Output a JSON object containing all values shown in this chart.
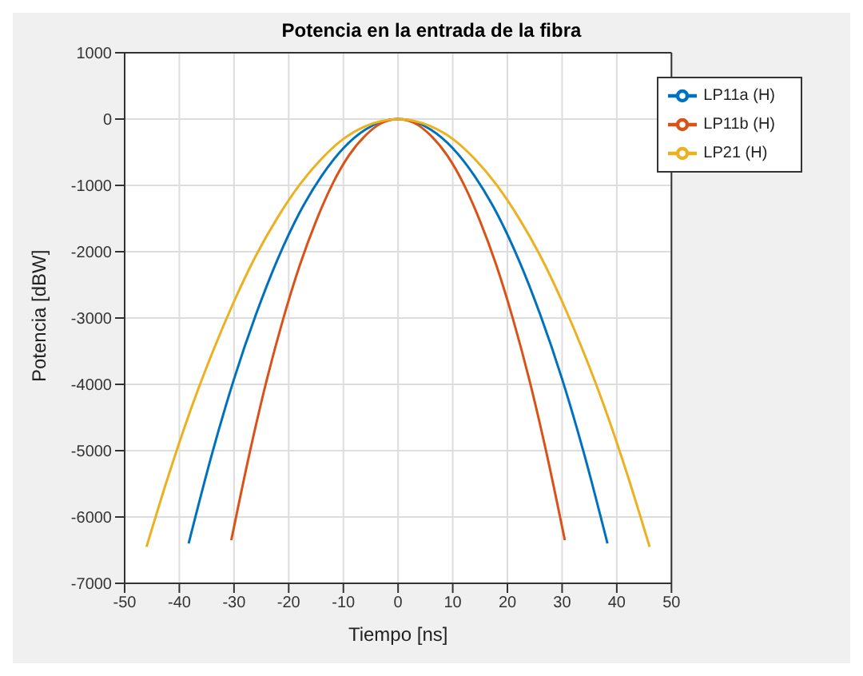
{
  "chart_data": {
    "type": "line",
    "title": "Potencia en la entrada de la fibra",
    "xlabel": "Tiempo [ns]",
    "ylabel": "Potencia [dBW]",
    "xlim": [
      -50,
      50
    ],
    "xticks": [
      -50,
      -40,
      -30,
      -20,
      -10,
      0,
      10,
      20,
      30,
      40,
      50
    ],
    "ylim": [
      -7000,
      1000
    ],
    "yticks": [
      -7000,
      -6000,
      -5000,
      -4000,
      -3000,
      -2000,
      -1000,
      0,
      1000
    ],
    "grid": true,
    "legend": "top right",
    "marker": "none",
    "line_style": "solid",
    "series": [
      {
        "name": "LP11a (H)",
        "color": "#0072bd",
        "x": [
          -38.3,
          -34,
          -30,
          -26,
          -22,
          -18,
          -14,
          -10,
          -6,
          -3,
          0,
          3,
          6,
          10,
          14,
          18,
          22,
          26,
          30,
          34,
          38.3
        ],
        "values": [
          -6400,
          -5040,
          -3920,
          -2950,
          -2110,
          -1410,
          -860,
          -440,
          -160,
          -40,
          0,
          -40,
          -160,
          -440,
          -860,
          -1410,
          -2110,
          -2950,
          -3920,
          -5040,
          -6400
        ]
      },
      {
        "name": "LP11b (H)",
        "color": "#d95319",
        "x": [
          -30.5,
          -27,
          -24,
          -21,
          -18,
          -15,
          -12,
          -9,
          -6,
          -3,
          0,
          3,
          6,
          9,
          12,
          15,
          18,
          21,
          24,
          27,
          30.5
        ],
        "values": [
          -6350,
          -4980,
          -3930,
          -3010,
          -2210,
          -1540,
          -980,
          -550,
          -250,
          -60,
          0,
          -60,
          -250,
          -550,
          -980,
          -1540,
          -2210,
          -3010,
          -3930,
          -4980,
          -6350
        ]
      },
      {
        "name": "LP21 (H)",
        "color": "#edb120",
        "x": [
          -46,
          -42,
          -38,
          -34,
          -30,
          -26,
          -22,
          -18,
          -14,
          -10,
          -6,
          -3,
          0,
          3,
          6,
          10,
          14,
          18,
          22,
          26,
          30,
          34,
          38,
          42,
          46
        ],
        "values": [
          -6450,
          -5380,
          -4400,
          -3530,
          -2750,
          -2060,
          -1480,
          -990,
          -600,
          -300,
          -110,
          -30,
          0,
          -30,
          -110,
          -300,
          -600,
          -990,
          -1480,
          -2060,
          -2750,
          -3530,
          -4400,
          -5380,
          -6450
        ]
      }
    ]
  }
}
